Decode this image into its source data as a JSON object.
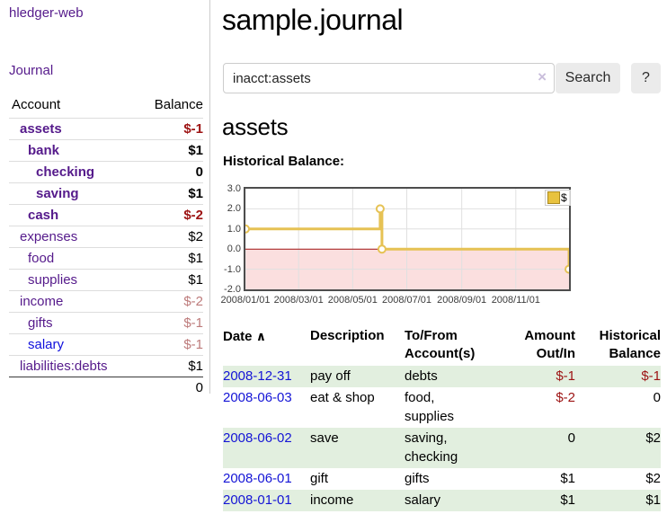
{
  "app": {
    "title": "hledger-web",
    "nav_journal": "Journal"
  },
  "colors": {
    "link_purple": "#551a8b",
    "link_blue": "#0f0fdc",
    "negative_strong": "#9d1313",
    "negative_soft": "#bd7b7b",
    "row_stripe_green": "#e2efdf",
    "chart_line_gold": "#e6c254",
    "chart_zero_line": "#a01212",
    "chart_negative_fill": "#fbdfdf",
    "chart_gridline": "#e0e0e0"
  },
  "sidebar": {
    "table_headers": {
      "account": "Account",
      "balance": "Balance"
    },
    "accounts": [
      {
        "name": "assets",
        "balance": "$-1",
        "depth": 1,
        "bold": true,
        "link_style": "purple",
        "balance_style": "negative-strong"
      },
      {
        "name": "bank",
        "balance": "$1",
        "depth": 2,
        "bold": true,
        "link_style": "purple",
        "balance_style": "normal"
      },
      {
        "name": "checking",
        "balance": "0",
        "depth": 3,
        "bold": true,
        "link_style": "purple",
        "balance_style": "normal"
      },
      {
        "name": "saving",
        "balance": "$1",
        "depth": 3,
        "bold": true,
        "link_style": "purple",
        "balance_style": "normal"
      },
      {
        "name": "cash",
        "balance": "$-2",
        "depth": 2,
        "bold": true,
        "link_style": "purple",
        "balance_style": "negative-strong"
      },
      {
        "name": "expenses",
        "balance": "$2",
        "depth": 1,
        "bold": false,
        "link_style": "purple",
        "balance_style": "normal"
      },
      {
        "name": "food",
        "balance": "$1",
        "depth": 2,
        "bold": false,
        "link_style": "purple",
        "balance_style": "normal"
      },
      {
        "name": "supplies",
        "balance": "$1",
        "depth": 2,
        "bold": false,
        "link_style": "purple",
        "balance_style": "normal"
      },
      {
        "name": "income",
        "balance": "$-2",
        "depth": 1,
        "bold": false,
        "link_style": "purple",
        "balance_style": "negative-soft"
      },
      {
        "name": "gifts",
        "balance": "$-1",
        "depth": 2,
        "bold": false,
        "link_style": "purple",
        "balance_style": "negative-soft"
      },
      {
        "name": "salary",
        "balance": "$-1",
        "depth": 2,
        "bold": false,
        "link_style": "blue",
        "balance_style": "negative-soft"
      },
      {
        "name": "liabilities:debts",
        "balance": "$1",
        "depth": 1,
        "bold": false,
        "link_style": "purple",
        "balance_style": "normal"
      }
    ],
    "total": "0"
  },
  "header": {
    "title": "sample.journal"
  },
  "search": {
    "value": "inacct:assets",
    "clear_icon": "×",
    "button": "Search",
    "help_button": "?"
  },
  "account_page": {
    "title": "assets",
    "chart_label": "Historical Balance:"
  },
  "chart_data": {
    "type": "line",
    "step": "after",
    "title": "Historical Balance",
    "series": [
      {
        "name": "$",
        "color": "#e6c254",
        "points": [
          [
            "2008-01-01",
            1.0
          ],
          [
            "2008-06-01",
            2.0
          ],
          [
            "2008-06-03",
            0.0
          ],
          [
            "2008-12-31",
            -1.0
          ]
        ]
      }
    ],
    "xlim": [
      "2008-01-01",
      "2008-12-31"
    ],
    "ylim": [
      -2,
      3
    ],
    "x_ticks": [
      {
        "date": "2008-01-01",
        "label": "2008/01/01"
      },
      {
        "date": "2008-03-01",
        "label": "2008/03/01"
      },
      {
        "date": "2008-05-01",
        "label": "2008/05/01"
      },
      {
        "date": "2008-07-01",
        "label": "2008/07/01"
      },
      {
        "date": "2008-09-01",
        "label": "2008/09/01"
      },
      {
        "date": "2008-11-01",
        "label": "2008/11/01"
      }
    ],
    "y_ticks": [
      {
        "value": 3,
        "label": "3.0"
      },
      {
        "value": 2,
        "label": "2.0"
      },
      {
        "value": 1,
        "label": "1.0"
      },
      {
        "value": 0,
        "label": "0.0"
      },
      {
        "value": -1,
        "label": "-1.0"
      },
      {
        "value": -2,
        "label": "-2.0"
      }
    ],
    "legend": {
      "label": "$",
      "position": "top-right"
    },
    "grid": true
  },
  "register": {
    "headers": {
      "date": "Date",
      "sort_icon": "∧",
      "description": "Description",
      "accounts_line1": "To/From",
      "accounts_line2": "Account(s)",
      "amount_line1": "Amount",
      "amount_line2": "Out/In",
      "balance_line1": "Historical",
      "balance_line2": "Balance"
    },
    "rows": [
      {
        "date": "2008-12-31",
        "description": "pay off",
        "accounts": "debts",
        "amount": "$-1",
        "amount_negative": true,
        "balance": "$-1",
        "balance_negative": true
      },
      {
        "date": "2008-06-03",
        "description": "eat & shop",
        "accounts": "food, supplies",
        "amount": "$-2",
        "amount_negative": true,
        "balance": "0",
        "balance_negative": false
      },
      {
        "date": "2008-06-02",
        "description": "save",
        "accounts": "saving, checking",
        "amount": "0",
        "amount_negative": false,
        "balance": "$2",
        "balance_negative": false
      },
      {
        "date": "2008-06-01",
        "description": "gift",
        "accounts": "gifts",
        "amount": "$1",
        "amount_negative": false,
        "balance": "$2",
        "balance_negative": false
      },
      {
        "date": "2008-01-01",
        "description": "income",
        "accounts": "salary",
        "amount": "$1",
        "amount_negative": false,
        "balance": "$1",
        "balance_negative": false
      }
    ]
  }
}
